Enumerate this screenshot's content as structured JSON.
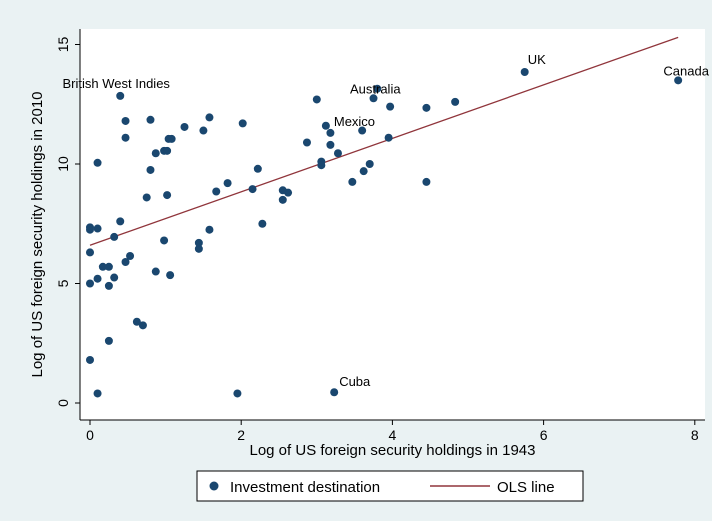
{
  "chart_data": {
    "type": "scatter",
    "xlabel": "Log of US foreign security holdings in 1943",
    "ylabel": "Log of US foreign security holdings in 2010",
    "xlim": [
      -0.2,
      8.1
    ],
    "ylim": [
      -0.4,
      15.9
    ],
    "xticks": [
      0,
      2,
      4,
      6,
      8
    ],
    "yticks": [
      0,
      5,
      10,
      15
    ],
    "grid": false,
    "legend_position": "bottom",
    "legend": [
      "Investment destination",
      "OLS line"
    ],
    "colors": {
      "points": "#1a476f",
      "ols": "#90353b",
      "background": "#eaf2f3",
      "plot": "#ffffff"
    },
    "series": [
      {
        "name": "Investment destination",
        "points": [
          [
            0.0,
            7.35
          ],
          [
            0.0,
            7.25
          ],
          [
            0.0,
            6.3
          ],
          [
            0.0,
            5.0
          ],
          [
            0.0,
            1.8
          ],
          [
            0.1,
            7.3
          ],
          [
            0.1,
            0.4
          ],
          [
            0.1,
            10.05
          ],
          [
            0.1,
            5.2
          ],
          [
            0.17,
            5.7
          ],
          [
            0.25,
            5.7
          ],
          [
            0.25,
            4.9
          ],
          [
            0.25,
            2.6
          ],
          [
            0.32,
            6.95
          ],
          [
            0.32,
            5.25
          ],
          [
            0.4,
            12.85
          ],
          [
            0.4,
            7.6
          ],
          [
            0.47,
            11.8
          ],
          [
            0.47,
            11.1
          ],
          [
            0.47,
            5.9
          ],
          [
            0.53,
            6.15
          ],
          [
            0.62,
            3.4
          ],
          [
            0.7,
            3.25
          ],
          [
            0.75,
            8.6
          ],
          [
            0.8,
            11.85
          ],
          [
            0.8,
            9.75
          ],
          [
            0.87,
            10.45
          ],
          [
            0.87,
            5.5
          ],
          [
            0.98,
            6.8
          ],
          [
            0.98,
            10.55
          ],
          [
            1.02,
            10.55
          ],
          [
            1.02,
            8.7
          ],
          [
            1.04,
            11.05
          ],
          [
            1.08,
            11.05
          ],
          [
            1.06,
            5.35
          ],
          [
            1.25,
            11.55
          ],
          [
            1.44,
            6.7
          ],
          [
            1.44,
            6.45
          ],
          [
            1.5,
            11.4
          ],
          [
            1.58,
            11.95
          ],
          [
            1.58,
            7.25
          ],
          [
            1.67,
            8.85
          ],
          [
            1.82,
            9.2
          ],
          [
            1.95,
            0.4
          ],
          [
            2.02,
            11.7
          ],
          [
            2.15,
            8.95
          ],
          [
            2.22,
            9.8
          ],
          [
            2.28,
            7.5
          ],
          [
            2.55,
            8.9
          ],
          [
            2.55,
            8.5
          ],
          [
            2.62,
            8.8
          ],
          [
            2.87,
            10.9
          ],
          [
            3.0,
            12.7
          ],
          [
            3.06,
            10.1
          ],
          [
            3.06,
            9.95
          ],
          [
            3.12,
            11.6
          ],
          [
            3.18,
            11.3
          ],
          [
            3.18,
            10.8
          ],
          [
            3.23,
            0.45
          ],
          [
            3.28,
            10.45
          ],
          [
            3.47,
            9.25
          ],
          [
            3.6,
            11.4
          ],
          [
            3.62,
            9.7
          ],
          [
            3.7,
            10.0
          ],
          [
            3.75,
            12.75
          ],
          [
            3.8,
            13.15
          ],
          [
            3.95,
            11.1
          ],
          [
            3.97,
            12.4
          ],
          [
            4.45,
            12.35
          ],
          [
            4.45,
            9.25
          ],
          [
            4.83,
            12.6
          ],
          [
            5.75,
            13.85
          ],
          [
            7.78,
            13.5
          ]
        ]
      }
    ],
    "ols_line": {
      "x": [
        0.0,
        7.78
      ],
      "y": [
        6.6,
        15.3
      ]
    },
    "annotations": [
      {
        "text": "British West Indies",
        "x": 0.4,
        "y": 12.85
      },
      {
        "text": "UK",
        "x": 5.75,
        "y": 13.85
      },
      {
        "text": "Canada",
        "x": 7.78,
        "y": 13.5
      },
      {
        "text": "Australia",
        "x": 3.8,
        "y": 13.15
      },
      {
        "text": "Mexico",
        "x": 3.12,
        "y": 11.6
      },
      {
        "text": "Cuba",
        "x": 3.23,
        "y": 0.45
      }
    ]
  }
}
